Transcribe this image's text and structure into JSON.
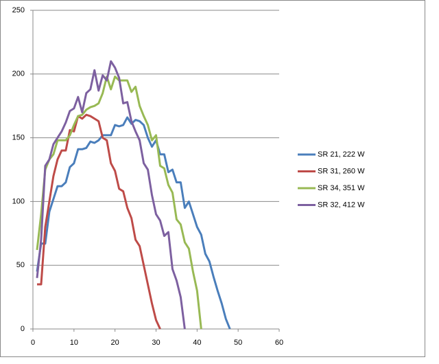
{
  "chart_data": {
    "type": "line",
    "xlim": [
      0,
      60
    ],
    "xticks": [
      0,
      10,
      20,
      30,
      40,
      50,
      60
    ],
    "ylim": [
      0,
      250
    ],
    "yticks": [
      0,
      50,
      100,
      150,
      200,
      250
    ],
    "grid": true,
    "legend": "right",
    "series": [
      {
        "name": "SR 21, 222 W",
        "color": "#4a7ebb",
        "x": [
          1,
          2,
          3,
          4,
          5,
          6,
          7,
          8,
          9,
          10,
          11,
          12,
          13,
          14,
          15,
          16,
          17,
          18,
          19,
          20,
          21,
          22,
          23,
          24,
          25,
          26,
          27,
          28,
          29,
          30,
          31,
          32,
          33,
          34,
          35,
          36,
          37,
          38,
          39,
          40,
          41,
          42,
          43,
          44,
          45,
          46,
          47,
          48
        ],
        "values": [
          45,
          67,
          67,
          92,
          102,
          112,
          112,
          115,
          127,
          130,
          141,
          141,
          142,
          147,
          146,
          148,
          152,
          152,
          152,
          160,
          159,
          160,
          166,
          161,
          164,
          163,
          160,
          150,
          143,
          148,
          137,
          137,
          123,
          125,
          115,
          115,
          95,
          100,
          90,
          80,
          74,
          59,
          53,
          41,
          30,
          20,
          8,
          0
        ]
      },
      {
        "name": "SR 31, 260 W",
        "color": "#be4b48",
        "x": [
          1,
          2,
          3,
          4,
          5,
          6,
          7,
          8,
          9,
          10,
          11,
          12,
          13,
          14,
          15,
          16,
          17,
          18,
          19,
          20,
          21,
          22,
          23,
          24,
          25,
          26,
          27,
          28,
          29,
          30,
          31
        ],
        "values": [
          35,
          35,
          80,
          100,
          120,
          133,
          140,
          140,
          156,
          155,
          167,
          165,
          168,
          167,
          165,
          163,
          150,
          148,
          130,
          124,
          110,
          108,
          95,
          87,
          70,
          65,
          50,
          35,
          20,
          7,
          0
        ]
      },
      {
        "name": "SR 34, 351 W",
        "color": "#98b954",
        "x": [
          1,
          2,
          3,
          4,
          5,
          6,
          7,
          8,
          9,
          10,
          11,
          12,
          13,
          14,
          15,
          16,
          17,
          18,
          19,
          20,
          21,
          22,
          23,
          24,
          25,
          26,
          27,
          28,
          29,
          30,
          31,
          32,
          33,
          34,
          35,
          36,
          37,
          38,
          39,
          40,
          41
        ],
        "values": [
          62,
          90,
          125,
          133,
          137,
          148,
          148,
          148,
          152,
          160,
          167,
          168,
          172,
          174,
          175,
          177,
          185,
          198,
          188,
          198,
          195,
          195,
          195,
          186,
          190,
          175,
          167,
          160,
          148,
          152,
          128,
          126,
          113,
          107,
          86,
          82,
          68,
          63,
          45,
          30,
          0
        ]
      },
      {
        "name": "SR 32, 412 W",
        "color": "#7d60a0",
        "x": [
          1,
          2,
          3,
          4,
          5,
          6,
          7,
          8,
          9,
          10,
          11,
          12,
          13,
          14,
          15,
          16,
          17,
          18,
          19,
          20,
          21,
          22,
          23,
          24,
          25,
          26,
          27,
          28,
          29,
          30,
          31,
          32,
          33,
          34,
          35,
          36,
          37
        ],
        "values": [
          40,
          70,
          128,
          133,
          145,
          150,
          155,
          162,
          171,
          173,
          182,
          170,
          185,
          188,
          203,
          187,
          199,
          195,
          210,
          205,
          197,
          177,
          178,
          163,
          155,
          148,
          130,
          125,
          105,
          90,
          85,
          73,
          76,
          47,
          38,
          25,
          0
        ]
      }
    ]
  }
}
